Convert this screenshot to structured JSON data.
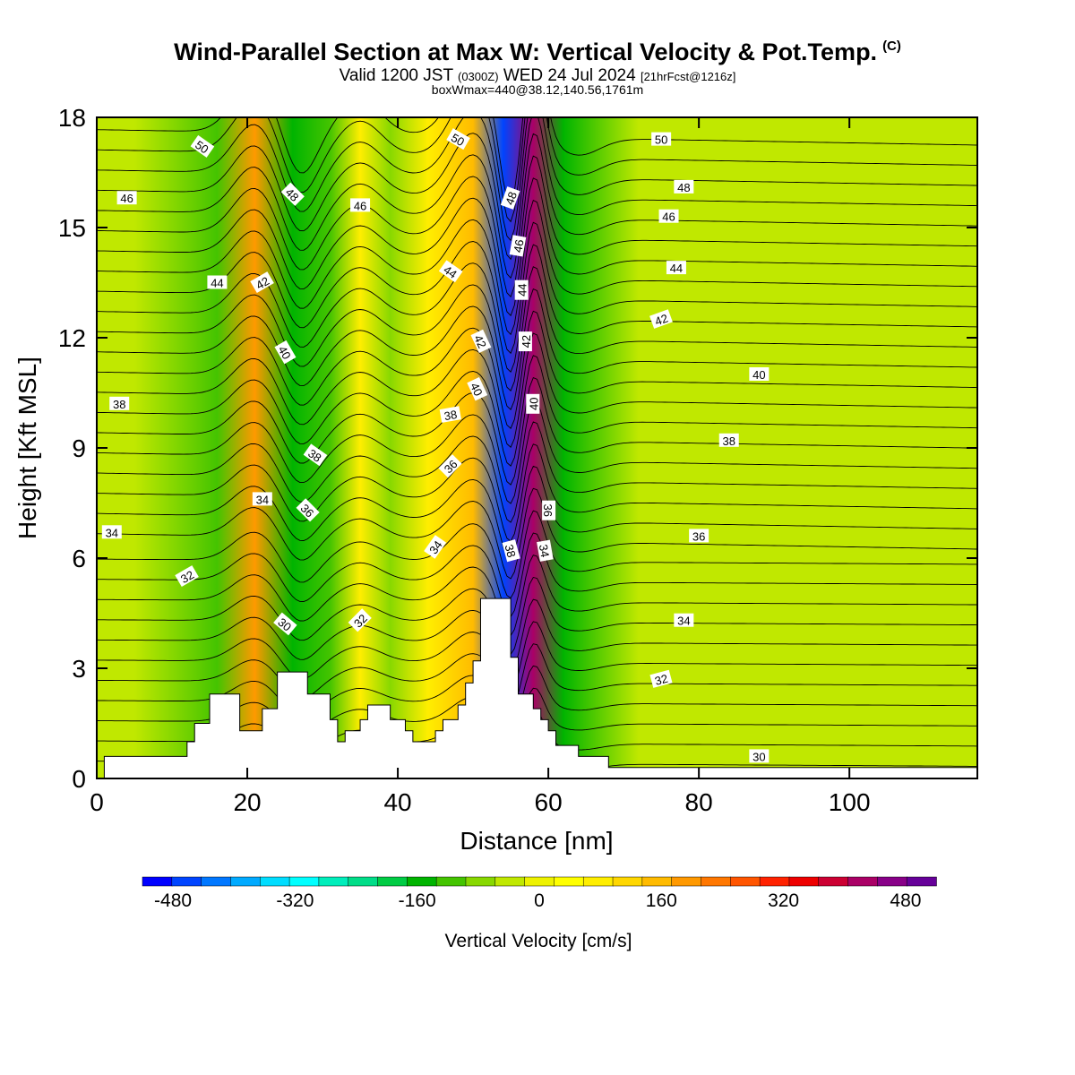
{
  "title": {
    "main": "Wind-Parallel Section at Max W: Vertical Velocity & Pot.Temp.",
    "copyright": "(C)",
    "valid_prefix": "Valid 1200 JST",
    "valid_utc": "(0300Z)",
    "valid_date": "WED 24 Jul 2024",
    "forecast": "[21hrFcst@1216z]",
    "box_info": "boxWmax=440@38.12,140.56,1761m"
  },
  "chart_data": {
    "type": "heatmap",
    "xlabel": "Distance [nm]",
    "ylabel": "Height [Kft MSL]",
    "xlim": [
      0,
      117
    ],
    "ylim": [
      0,
      18
    ],
    "x_ticks": [
      0,
      20,
      40,
      60,
      80,
      100
    ],
    "y_ticks": [
      0,
      3,
      6,
      9,
      12,
      15,
      18
    ],
    "colorbar": {
      "label": "Vertical Velocity [cm/s]",
      "ticks": [
        -480,
        -320,
        -160,
        0,
        160,
        320,
        480
      ],
      "range": [
        -520,
        520
      ],
      "step": 40,
      "colors": [
        "#0000ff",
        "#0044ff",
        "#0077ff",
        "#00aaff",
        "#00ddff",
        "#00ffff",
        "#00eebb",
        "#00dd88",
        "#00cc44",
        "#00b400",
        "#44c400",
        "#88d800",
        "#c0e800",
        "#eef200",
        "#ffff00",
        "#ffee00",
        "#ffd700",
        "#ffbb00",
        "#ff9900",
        "#ff7700",
        "#ff5500",
        "#ff2200",
        "#ee0000",
        "#cc0033",
        "#aa0066",
        "#880088",
        "#660099"
      ]
    },
    "terrain_profile": {
      "x": [
        0,
        1,
        10,
        12,
        13,
        15,
        18,
        19,
        21,
        22,
        24,
        27,
        28,
        31,
        32,
        33,
        35,
        36,
        38,
        39,
        41,
        42,
        43,
        45,
        46,
        48,
        49,
        50,
        51,
        53,
        55,
        56,
        58,
        59,
        60,
        61,
        64,
        66,
        68,
        69,
        73,
        76,
        82,
        95,
        117
      ],
      "height_kft": [
        0,
        0.6,
        0.6,
        1.0,
        1.5,
        2.3,
        2.3,
        1.3,
        1.3,
        1.9,
        2.9,
        2.9,
        2.3,
        1.6,
        1.0,
        1.3,
        1.6,
        2.0,
        2.0,
        1.6,
        1.3,
        1.0,
        1.0,
        1.3,
        1.6,
        2.0,
        2.6,
        3.2,
        4.9,
        4.9,
        3.3,
        2.3,
        1.9,
        1.6,
        1.3,
        0.9,
        0.6,
        0.6,
        0.3,
        0.3,
        0.3,
        0.3,
        0.3,
        0.3,
        0.3
      ]
    },
    "vertical_velocity_bands": [
      {
        "center_x": 5,
        "w_cms": -50
      },
      {
        "center_x": 16,
        "w_cms": -130
      },
      {
        "center_x": 21,
        "w_cms": 180
      },
      {
        "center_x": 26,
        "w_cms": -160
      },
      {
        "center_x": 31,
        "w_cms": -140
      },
      {
        "center_x": 35,
        "w_cms": 70
      },
      {
        "center_x": 39,
        "w_cms": -90
      },
      {
        "center_x": 44,
        "w_cms": 90
      },
      {
        "center_x": 50,
        "w_cms": 170
      },
      {
        "center_x": 54,
        "w_cms": -480
      },
      {
        "center_x": 58,
        "w_cms": 440
      },
      {
        "center_x": 62,
        "w_cms": -160
      },
      {
        "center_x": 72,
        "w_cms": -60
      },
      {
        "center_x": 84,
        "w_cms": -40
      },
      {
        "center_x": 100,
        "w_cms": -30
      }
    ],
    "theta_isentropes": [
      {
        "theta": 30,
        "height_kft": 0.5
      },
      {
        "theta": 32,
        "height_kft": 3.0
      },
      {
        "theta": 34,
        "height_kft": 4.6
      },
      {
        "theta": 36,
        "height_kft": 6.5
      },
      {
        "theta": 38,
        "height_kft": 9.0
      },
      {
        "theta": 40,
        "height_kft": 11.0
      },
      {
        "theta": 42,
        "height_kft": 12.5
      },
      {
        "theta": 44,
        "height_kft": 13.8
      },
      {
        "theta": 46,
        "height_kft": 15.2
      },
      {
        "theta": 48,
        "height_kft": 16.4
      },
      {
        "theta": 50,
        "height_kft": 17.4
      }
    ],
    "contour_labels": [
      {
        "text": "50",
        "x": 14,
        "y": 17.2,
        "rot": 35
      },
      {
        "text": "48",
        "x": 26,
        "y": 15.9,
        "rot": 45
      },
      {
        "text": "46",
        "x": 4,
        "y": 15.8,
        "rot": 0
      },
      {
        "text": "46",
        "x": 35,
        "y": 15.6,
        "rot": 0
      },
      {
        "text": "44",
        "x": 16,
        "y": 13.5,
        "rot": 0
      },
      {
        "text": "42",
        "x": 22,
        "y": 13.5,
        "rot": -30
      },
      {
        "text": "40",
        "x": 25,
        "y": 11.6,
        "rot": 60
      },
      {
        "text": "38",
        "x": 3,
        "y": 10.2,
        "rot": 0
      },
      {
        "text": "38",
        "x": 29,
        "y": 8.8,
        "rot": 35
      },
      {
        "text": "34",
        "x": 22,
        "y": 7.6,
        "rot": 0
      },
      {
        "text": "36",
        "x": 28,
        "y": 7.3,
        "rot": 45
      },
      {
        "text": "34",
        "x": 2,
        "y": 6.7,
        "rot": 0
      },
      {
        "text": "32",
        "x": 12,
        "y": 5.5,
        "rot": -30
      },
      {
        "text": "30",
        "x": 25,
        "y": 4.2,
        "rot": 40
      },
      {
        "text": "32",
        "x": 35,
        "y": 4.3,
        "rot": -45
      },
      {
        "text": "50",
        "x": 48,
        "y": 17.4,
        "rot": 30
      },
      {
        "text": "44",
        "x": 47,
        "y": 13.8,
        "rot": 35
      },
      {
        "text": "48",
        "x": 55,
        "y": 15.8,
        "rot": -70
      },
      {
        "text": "46",
        "x": 56,
        "y": 14.5,
        "rot": -80
      },
      {
        "text": "44",
        "x": 56.5,
        "y": 13.3,
        "rot": -90
      },
      {
        "text": "42",
        "x": 51,
        "y": 11.9,
        "rot": 65
      },
      {
        "text": "42",
        "x": 57,
        "y": 11.9,
        "rot": -90
      },
      {
        "text": "40",
        "x": 50.5,
        "y": 10.6,
        "rot": 65
      },
      {
        "text": "40",
        "x": 58,
        "y": 10.2,
        "rot": -90
      },
      {
        "text": "38",
        "x": 47,
        "y": 9.9,
        "rot": -10
      },
      {
        "text": "36",
        "x": 47,
        "y": 8.5,
        "rot": -45
      },
      {
        "text": "34",
        "x": 45,
        "y": 6.3,
        "rot": -55
      },
      {
        "text": "38",
        "x": 55,
        "y": 6.2,
        "rot": 75
      },
      {
        "text": "36",
        "x": 60,
        "y": 7.3,
        "rot": 90
      },
      {
        "text": "34",
        "x": 59.5,
        "y": 6.2,
        "rot": 80
      },
      {
        "text": "50",
        "x": 75,
        "y": 17.4,
        "rot": 0
      },
      {
        "text": "48",
        "x": 78,
        "y": 16.1,
        "rot": 0
      },
      {
        "text": "46",
        "x": 76,
        "y": 15.3,
        "rot": 0
      },
      {
        "text": "44",
        "x": 77,
        "y": 13.9,
        "rot": 0
      },
      {
        "text": "42",
        "x": 75,
        "y": 12.5,
        "rot": -20
      },
      {
        "text": "40",
        "x": 88,
        "y": 11.0,
        "rot": 0
      },
      {
        "text": "38",
        "x": 84,
        "y": 9.2,
        "rot": 0
      },
      {
        "text": "36",
        "x": 80,
        "y": 6.6,
        "rot": 0
      },
      {
        "text": "34",
        "x": 78,
        "y": 4.3,
        "rot": 0
      },
      {
        "text": "32",
        "x": 75,
        "y": 2.7,
        "rot": -15
      },
      {
        "text": "30",
        "x": 88,
        "y": 0.6,
        "rot": 0
      }
    ]
  }
}
